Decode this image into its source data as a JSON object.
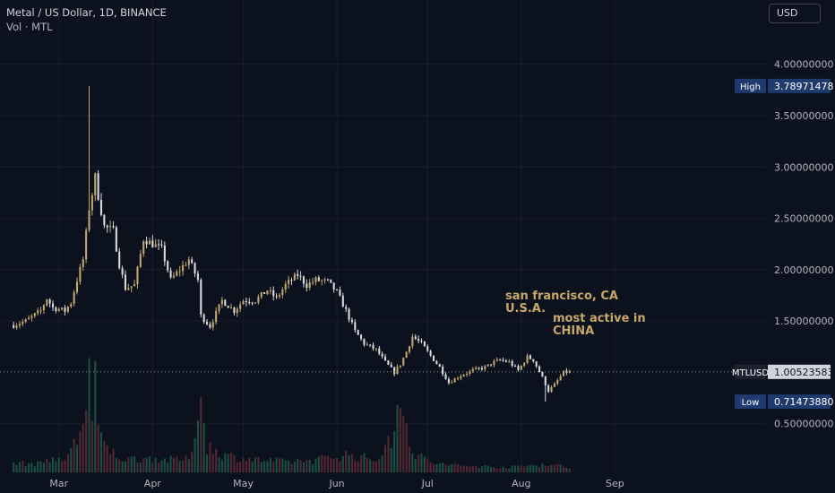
{
  "header": {
    "title": "Metal / US Dollar, 1D, BINANCE",
    "volume_label": "Vol · MTL"
  },
  "currency_button": "USD",
  "annotations": {
    "note1": "san francisco, CA\nU.S.A.",
    "note2": "most active in\nCHINA"
  },
  "colors": {
    "background": "#0c111e",
    "up": "#c2a66c",
    "down": "#d8dade",
    "volume_up": "#1e5748",
    "volume_down": "#5a2a33",
    "high_badge": "#1e3a6e",
    "last_badge": "#d1d4dc",
    "annotation": "#c8a868"
  },
  "chart_data": {
    "type": "candlestick",
    "symbol": "MTLUSD",
    "y_ticks": [
      "4.00000000",
      "3.50000000",
      "3.00000000",
      "2.50000000",
      "2.00000000",
      "1.50000000",
      "0.50000000"
    ],
    "y_tick_values": [
      4.0,
      3.5,
      3.0,
      2.5,
      2.0,
      1.5,
      0.5
    ],
    "ylim": [
      0.0,
      4.6
    ],
    "x_ticks": [
      "Mar",
      "Apr",
      "May",
      "Jun",
      "Jul",
      "Aug",
      "Sep"
    ],
    "x_tick_days": [
      15,
      46,
      76,
      107,
      137,
      168,
      199
    ],
    "x_range_days": [
      -4.5,
      249.0
    ],
    "high": {
      "label": "High",
      "value": "3.78971478",
      "num": 3.78971478
    },
    "low": {
      "label": "Low",
      "value": "0.71473880",
      "num": 0.7147388
    },
    "last": {
      "label": "MTLUSD",
      "value": "1.00523583",
      "num": 1.00523583
    },
    "price_anchors": [
      [
        0,
        1.46
      ],
      [
        4,
        1.5
      ],
      [
        9,
        1.6
      ],
      [
        11,
        1.72
      ],
      [
        13,
        1.63
      ],
      [
        17,
        1.6
      ],
      [
        19,
        1.68
      ],
      [
        21,
        1.9
      ],
      [
        23,
        2.1
      ],
      [
        25,
        2.6
      ],
      [
        26,
        2.74
      ],
      [
        27,
        2.9
      ],
      [
        28,
        2.72
      ],
      [
        30,
        2.42
      ],
      [
        33,
        2.38
      ],
      [
        35,
        2.05
      ],
      [
        37,
        1.82
      ],
      [
        40,
        1.85
      ],
      [
        43,
        2.3
      ],
      [
        46,
        2.25
      ],
      [
        49,
        2.2
      ],
      [
        52,
        1.9
      ],
      [
        55,
        2.0
      ],
      [
        58,
        2.1
      ],
      [
        61,
        1.9
      ],
      [
        62,
        1.55
      ],
      [
        65,
        1.45
      ],
      [
        69,
        1.7
      ],
      [
        73,
        1.6
      ],
      [
        76,
        1.7
      ],
      [
        80,
        1.7
      ],
      [
        84,
        1.8
      ],
      [
        87,
        1.72
      ],
      [
        90,
        1.85
      ],
      [
        94,
        1.95
      ],
      [
        97,
        1.85
      ],
      [
        100,
        1.9
      ],
      [
        104,
        1.88
      ],
      [
        107,
        1.78
      ],
      [
        110,
        1.6
      ],
      [
        113,
        1.4
      ],
      [
        116,
        1.28
      ],
      [
        120,
        1.22
      ],
      [
        123,
        1.1
      ],
      [
        126,
        1.0
      ],
      [
        128,
        1.08
      ],
      [
        130,
        1.2
      ],
      [
        132,
        1.35
      ],
      [
        135,
        1.28
      ],
      [
        137,
        1.2
      ],
      [
        141,
        1.05
      ],
      [
        144,
        0.9
      ],
      [
        148,
        0.97
      ],
      [
        152,
        1.02
      ],
      [
        156,
        1.05
      ],
      [
        159,
        1.1
      ],
      [
        161,
        1.12
      ],
      [
        164,
        1.1
      ],
      [
        167,
        1.02
      ],
      [
        170,
        1.15
      ],
      [
        172,
        1.12
      ],
      [
        175,
        0.95
      ],
      [
        177,
        0.82
      ],
      [
        179,
        0.88
      ],
      [
        182,
        1.0
      ],
      [
        184,
        1.005
      ]
    ],
    "volume_anchors": [
      [
        0,
        0.09
      ],
      [
        8,
        0.08
      ],
      [
        12,
        0.14
      ],
      [
        16,
        0.1
      ],
      [
        21,
        0.3
      ],
      [
        24,
        0.65
      ],
      [
        25,
        1.0
      ],
      [
        26,
        0.48
      ],
      [
        27,
        0.98
      ],
      [
        28,
        0.35
      ],
      [
        32,
        0.2
      ],
      [
        37,
        0.12
      ],
      [
        43,
        0.14
      ],
      [
        50,
        0.12
      ],
      [
        58,
        0.12
      ],
      [
        62,
        0.7
      ],
      [
        64,
        0.25
      ],
      [
        70,
        0.16
      ],
      [
        80,
        0.12
      ],
      [
        90,
        0.1
      ],
      [
        100,
        0.12
      ],
      [
        110,
        0.17
      ],
      [
        120,
        0.12
      ],
      [
        126,
        0.35
      ],
      [
        128,
        0.87
      ],
      [
        132,
        0.18
      ],
      [
        140,
        0.08
      ],
      [
        150,
        0.06
      ],
      [
        165,
        0.05
      ],
      [
        176,
        0.08
      ],
      [
        184,
        0.05
      ]
    ]
  }
}
